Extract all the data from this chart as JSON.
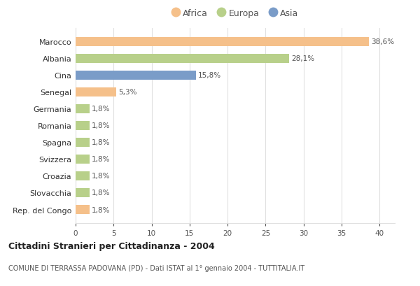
{
  "categories": [
    "Marocco",
    "Albania",
    "Cina",
    "Senegal",
    "Germania",
    "Romania",
    "Spagna",
    "Svizzera",
    "Croazia",
    "Slovacchia",
    "Rep. del Congo"
  ],
  "values": [
    38.6,
    28.1,
    15.8,
    5.3,
    1.8,
    1.8,
    1.8,
    1.8,
    1.8,
    1.8,
    1.8
  ],
  "labels": [
    "38,6%",
    "28,1%",
    "15,8%",
    "5,3%",
    "1,8%",
    "1,8%",
    "1,8%",
    "1,8%",
    "1,8%",
    "1,8%",
    "1,8%"
  ],
  "colors": [
    "#f5c08a",
    "#b8d08a",
    "#7a9cc8",
    "#f5c08a",
    "#b8d08a",
    "#b8d08a",
    "#b8d08a",
    "#b8d08a",
    "#b8d08a",
    "#b8d08a",
    "#f5c08a"
  ],
  "legend_labels": [
    "Africa",
    "Europa",
    "Asia"
  ],
  "legend_colors": [
    "#f5c08a",
    "#b8d08a",
    "#7a9cc8"
  ],
  "title": "Cittadini Stranieri per Cittadinanza - 2004",
  "subtitle": "COMUNE DI TERRASSA PADOVANA (PD) - Dati ISTAT al 1° gennaio 2004 - TUTTITALIA.IT",
  "xlim": [
    0,
    42
  ],
  "xticks": [
    0,
    5,
    10,
    15,
    20,
    25,
    30,
    35,
    40
  ],
  "background_color": "#ffffff",
  "grid_color": "#e0e0e0"
}
